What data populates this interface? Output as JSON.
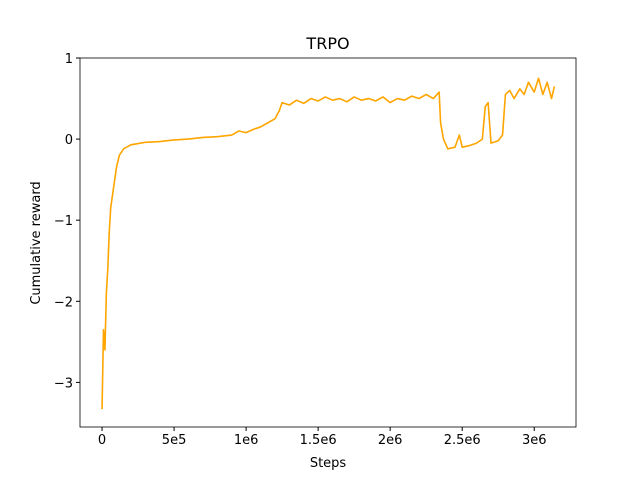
{
  "chart_data": {
    "type": "line",
    "title": "TRPO",
    "xlabel": "Steps",
    "ylabel": "Cumulative reward",
    "xlim": [
      -153000,
      3290000
    ],
    "ylim": [
      -3.55,
      1.0
    ],
    "xticks": [
      0,
      {
        "value": 500000,
        "label": "5e5"
      },
      {
        "value": 1000000,
        "label": "1e6"
      },
      {
        "value": 1500000,
        "label": "1.5e6"
      },
      {
        "value": 2000000,
        "label": "2e6"
      },
      {
        "value": 2500000,
        "label": "2.5e6"
      },
      {
        "value": 3000000,
        "label": "3e6"
      }
    ],
    "yticks": [
      {
        "value": -3,
        "label": "−3"
      },
      {
        "value": -2,
        "label": "−2"
      },
      {
        "value": -1,
        "label": "−1"
      },
      0,
      1
    ],
    "series": [
      {
        "color": "#ffa500",
        "x": [
          0,
          10000,
          20000,
          30000,
          40000,
          50000,
          60000,
          80000,
          100000,
          120000,
          150000,
          200000,
          300000,
          400000,
          500000,
          600000,
          700000,
          800000,
          900000,
          950000,
          1000000,
          1050000,
          1100000,
          1150000,
          1200000,
          1230000,
          1250000,
          1300000,
          1350000,
          1400000,
          1450000,
          1500000,
          1550000,
          1600000,
          1650000,
          1700000,
          1750000,
          1800000,
          1850000,
          1900000,
          1950000,
          2000000,
          2050000,
          2100000,
          2150000,
          2200000,
          2250000,
          2300000,
          2340000,
          2350000,
          2370000,
          2400000,
          2450000,
          2480000,
          2500000,
          2550000,
          2600000,
          2640000,
          2660000,
          2680000,
          2700000,
          2750000,
          2780000,
          2800000,
          2830000,
          2860000,
          2900000,
          2930000,
          2960000,
          3000000,
          3030000,
          3060000,
          3090000,
          3120000,
          3140000
        ],
        "values": [
          -3.33,
          -2.35,
          -2.6,
          -1.9,
          -1.6,
          -1.15,
          -0.85,
          -0.6,
          -0.35,
          -0.2,
          -0.12,
          -0.07,
          -0.04,
          -0.03,
          -0.01,
          0.0,
          0.02,
          0.03,
          0.05,
          0.1,
          0.08,
          0.12,
          0.15,
          0.2,
          0.25,
          0.35,
          0.45,
          0.42,
          0.48,
          0.44,
          0.5,
          0.47,
          0.52,
          0.48,
          0.5,
          0.46,
          0.52,
          0.48,
          0.5,
          0.47,
          0.52,
          0.45,
          0.5,
          0.48,
          0.53,
          0.5,
          0.55,
          0.5,
          0.58,
          0.2,
          0.0,
          -0.12,
          -0.1,
          0.05,
          -0.1,
          -0.08,
          -0.05,
          0.0,
          0.4,
          0.45,
          -0.05,
          -0.02,
          0.05,
          0.55,
          0.6,
          0.5,
          0.62,
          0.55,
          0.7,
          0.58,
          0.75,
          0.55,
          0.7,
          0.5,
          0.65
        ]
      }
    ]
  }
}
